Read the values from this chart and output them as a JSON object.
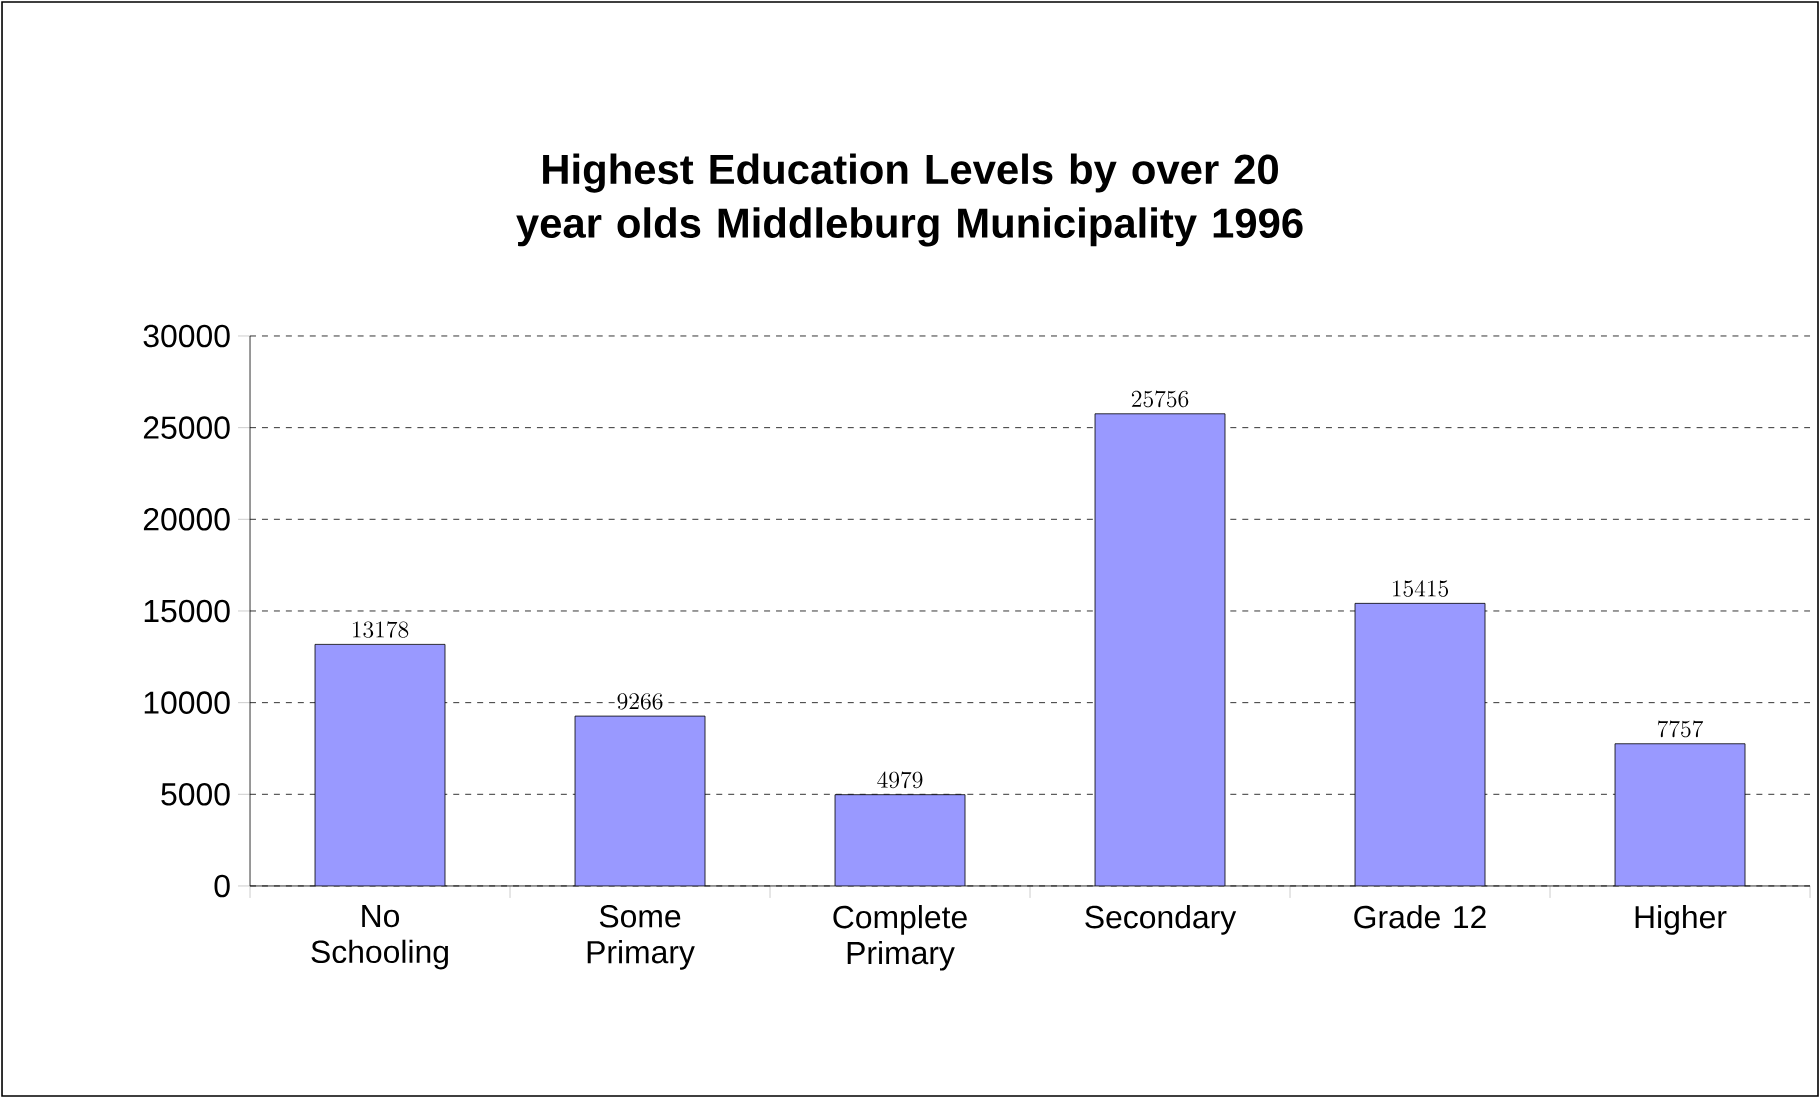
{
  "chart_data": {
    "type": "bar",
    "title": "Highest Education Levels by over 20 year olds Middleburg Municipality 1996",
    "categories": [
      "No Schooling",
      "Some Primary",
      "Complete Primary",
      "Secondary",
      "Grade 12",
      "Higher"
    ],
    "values": [
      13178,
      9266,
      4979,
      25756,
      15415,
      7757
    ],
    "color": "#9999ff",
    "ylim": [
      0,
      30000
    ],
    "yticks": [
      0,
      5000,
      10000,
      15000,
      20000,
      25000,
      30000
    ],
    "grid": "y",
    "data_labels": true
  }
}
